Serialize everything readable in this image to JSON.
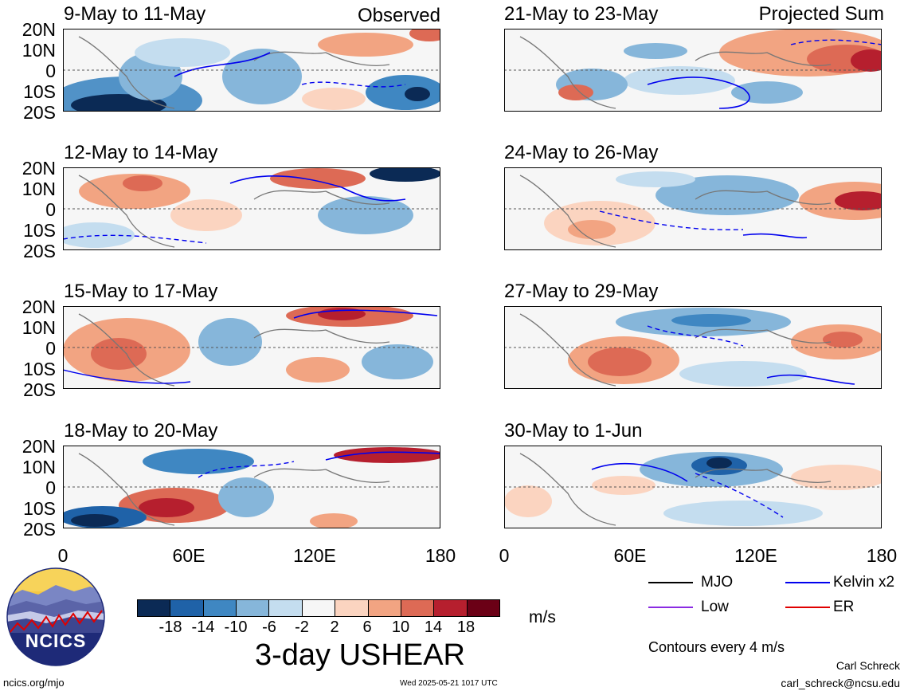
{
  "panels": {
    "p1": {
      "title": "9-May to 11-May",
      "tag": "Observed"
    },
    "p2": {
      "title": "12-May to 14-May"
    },
    "p3": {
      "title": "15-May to 17-May"
    },
    "p4": {
      "title": "18-May to 20-May"
    },
    "p5": {
      "title": "21-May to 23-May",
      "tag": "Projected Sum"
    },
    "p6": {
      "title": "24-May to 26-May"
    },
    "p7": {
      "title": "27-May to 29-May"
    },
    "p8": {
      "title": "30-May to 1-Jun"
    }
  },
  "lat_labels": [
    "20N",
    "10N",
    "0",
    "10S",
    "20S"
  ],
  "lon_labels": [
    "0",
    "60E",
    "120E",
    "180"
  ],
  "colorbar": {
    "ticks": [
      "-18",
      "-14",
      "-10",
      "-6",
      "-2",
      "2",
      "6",
      "10",
      "14",
      "18"
    ],
    "colors": [
      "#0b2a55",
      "#1f62a8",
      "#3f87c2",
      "#86b6da",
      "#c4ddef",
      "#f6f6f6",
      "#fbd4c0",
      "#f2a482",
      "#dd6a55",
      "#b61f2e",
      "#6b0016"
    ],
    "unit": "m/s"
  },
  "main_title": "3-day USHEAR",
  "logo_text": "NCICS",
  "legend": {
    "mjo": {
      "label": "MJO",
      "color": "#000000"
    },
    "kelvin": {
      "label": "Kelvin x2",
      "color": "#0000ee"
    },
    "low": {
      "label": "Low",
      "color": "#8a2be2"
    },
    "er": {
      "label": "ER",
      "color": "#e00000"
    },
    "note": "Contours every 4 m/s"
  },
  "footer": {
    "url": "ncics.org/mjo",
    "timestamp": "Wed 2025-05-21 1017 UTC",
    "author": "Carl Schreck",
    "email": "carl_schreck@ncsu.edu"
  }
}
